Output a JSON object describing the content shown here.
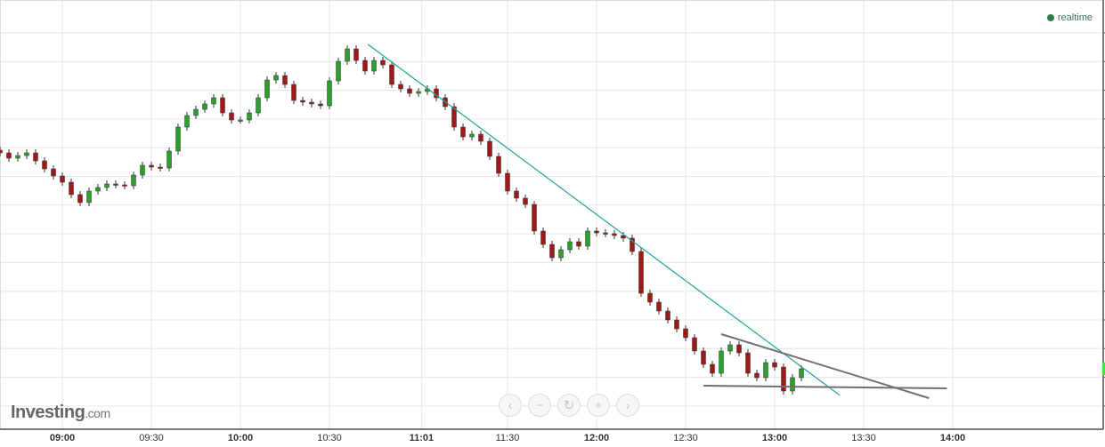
{
  "status": {
    "label": "realtime",
    "color": "#2e7d52"
  },
  "brand": {
    "name": "Investing",
    "suffix": ".com"
  },
  "zoom_controls": [
    {
      "name": "scroll-left",
      "glyph": "‹"
    },
    {
      "name": "zoom-out",
      "glyph": "−"
    },
    {
      "name": "reset",
      "glyph": "↻"
    },
    {
      "name": "zoom-in",
      "glyph": "+"
    },
    {
      "name": "scroll-right",
      "glyph": "›"
    }
  ],
  "chart_data": {
    "type": "candlestick",
    "title": "",
    "grid": true,
    "x_ticks": [
      {
        "label": "09:00",
        "time": "09:00",
        "bold": true
      },
      {
        "label": "09:30",
        "time": "09:30",
        "bold": false
      },
      {
        "label": "10:00",
        "time": "10:00",
        "bold": true
      },
      {
        "label": "10:30",
        "time": "10:30",
        "bold": false
      },
      {
        "label": "11:01",
        "time": "11:01",
        "bold": true
      },
      {
        "label": "11:30",
        "time": "11:30",
        "bold": false
      },
      {
        "label": "12:00",
        "time": "12:00",
        "bold": true
      },
      {
        "label": "12:30",
        "time": "12:30",
        "bold": false
      },
      {
        "label": "13:00",
        "time": "13:00",
        "bold": true
      },
      {
        "label": "13:30",
        "time": "13:30",
        "bold": false
      },
      {
        "label": "14:00",
        "time": "14:00",
        "bold": true
      }
    ],
    "start_time": "08:39",
    "interval_minutes": 3,
    "closes": [
      30.8,
      30.2,
      30.5,
      30.8,
      29.9,
      29.0,
      28.2,
      27.5,
      26.1,
      25.2,
      26.5,
      26.9,
      27.3,
      27.2,
      27.1,
      28.3,
      29.4,
      29.2,
      29.1,
      31.0,
      33.7,
      35.0,
      35.7,
      36.3,
      37.0,
      35.3,
      34.5,
      34.5,
      35.3,
      37.0,
      39.0,
      39.5,
      38.5,
      36.7,
      36.5,
      36.3,
      36.1,
      38.9,
      41.1,
      42.5,
      41.2,
      40.0,
      41.2,
      40.7,
      38.5,
      38.0,
      37.5,
      37.7,
      38.0,
      37.0,
      36.0,
      33.7,
      32.6,
      32.9,
      32.1,
      30.4,
      28.5,
      26.5,
      25.7,
      25.0,
      22.0,
      20.5,
      19.0,
      19.9,
      20.8,
      20.3,
      22.0,
      21.8,
      21.7,
      21.5,
      21.2,
      19.7,
      15.0,
      14.0,
      13.0,
      12.0,
      11.0,
      10.0,
      8.5,
      7.0,
      6.0,
      8.5,
      9.2,
      8.3,
      6.0,
      5.5,
      7.2,
      6.7,
      4.0,
      5.5,
      6.5
    ],
    "up_color": "#2ca02c",
    "down_color": "#a01818",
    "trendlines": [
      {
        "from": {
          "time": "10:43",
          "price": 43.0
        },
        "to": {
          "time": "13:22",
          "price": 3.5
        },
        "color": "#22a39a"
      },
      {
        "from": {
          "time": "12:42",
          "price": 10.4
        },
        "to": {
          "time": "13:52",
          "price": 3.2
        },
        "color": "#707070"
      },
      {
        "from": {
          "time": "12:36",
          "price": 4.6
        },
        "to": {
          "time": "13:58",
          "price": 4.3
        },
        "color": "#707070"
      }
    ],
    "current_price_marker_color": "#33ee33"
  }
}
